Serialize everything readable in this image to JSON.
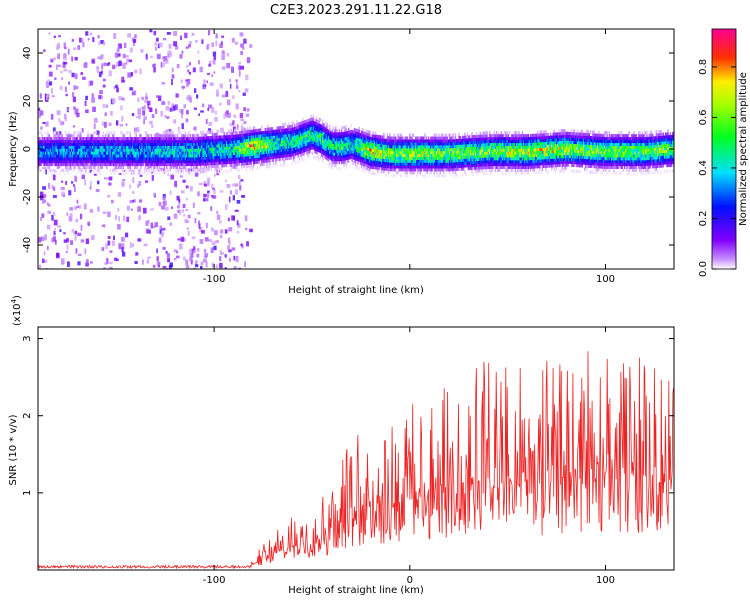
{
  "figure_title": "C2E3.2023.291.11.22.G18",
  "chart_data": [
    {
      "type": "heatmap",
      "title": "",
      "xlabel": "Height of straight line (km)",
      "ylabel": "Frequency (Hz)",
      "xlim": [
        -190,
        135
      ],
      "ylim": [
        -50,
        50
      ],
      "x_ticks": [
        -100,
        0,
        100
      ],
      "x_tick_labels": [
        "-100",
        "",
        "100"
      ],
      "y_ticks": [
        -40,
        -20,
        0,
        20,
        40
      ],
      "y_tick_labels": [
        "-40",
        "-20",
        "0",
        "20",
        "40"
      ],
      "grid": false,
      "colorbar": {
        "label": "Normalized spectral amplitude",
        "range": [
          0,
          0.95
        ],
        "ticks": [
          0.0,
          0.2,
          0.4,
          0.6,
          0.8
        ],
        "tick_labels": [
          "0.0",
          "0.2",
          "0.4",
          "0.6",
          "0.8"
        ],
        "colormap": "rainbow",
        "stops": [
          "#ffffff",
          "#8000ff",
          "#0000ff",
          "#00ffff",
          "#00ff00",
          "#ffff00",
          "#ff0000",
          "#ff00a0"
        ]
      },
      "signal_track": {
        "x": [
          -190,
          -170,
          -150,
          -130,
          -110,
          -90,
          -80,
          -70,
          -60,
          -50,
          -45,
          -40,
          -35,
          -30,
          -20,
          -10,
          0,
          20,
          40,
          60,
          80,
          100,
          120,
          135
        ],
        "center_frequency_hz": [
          -1,
          -1,
          -1,
          -1,
          -1,
          0,
          1,
          2,
          3,
          6,
          4,
          1,
          1,
          2,
          -1,
          -2,
          -2,
          -2,
          -1,
          -1,
          0,
          -1,
          -1,
          0
        ],
        "peak_amplitude": [
          0.4,
          0.4,
          0.45,
          0.45,
          0.5,
          0.55,
          0.9,
          0.6,
          0.55,
          0.6,
          0.6,
          0.55,
          0.6,
          0.5,
          0.85,
          0.7,
          0.75,
          0.7,
          0.7,
          0.8,
          0.75,
          0.7,
          0.7,
          0.7
        ]
      },
      "scatter_region": {
        "x_range": [
          -190,
          -82
        ],
        "f_range": [
          -50,
          50
        ]
      }
    },
    {
      "type": "line",
      "title": "",
      "xlabel": "Height of straight line (km)",
      "ylabel": "SNR (10 * v/v)",
      "scale_label": "(x10",
      "scale_exponent": "4",
      "scale_close": ")",
      "xlim": [
        -190,
        135
      ],
      "ylim": [
        0,
        3.15
      ],
      "x_ticks": [
        -100,
        0,
        100
      ],
      "x_tick_labels": [
        "-100",
        "0",
        "100"
      ],
      "y_ticks": [
        1,
        2,
        3
      ],
      "y_tick_labels": [
        "1",
        "2",
        "3"
      ],
      "grid": false,
      "color": "#ee2222",
      "series": [
        {
          "x": [
            -190,
            -100,
            -82,
            -75,
            -60,
            -50,
            -40,
            -30,
            -20,
            -10,
            0,
            20,
            40,
            60,
            80,
            100,
            120,
            135
          ],
          "baseline": [
            0.03,
            0.03,
            0.04,
            0.15,
            0.3,
            0.35,
            0.5,
            0.7,
            0.8,
            0.85,
            0.9,
            0.95,
            1.05,
            1.1,
            1.1,
            1.15,
            1.1,
            1.15
          ],
          "peak": [
            0.06,
            0.07,
            0.09,
            0.35,
            0.7,
            0.9,
            1.3,
            1.7,
            1.9,
            2.1,
            2.2,
            2.4,
            2.9,
            2.8,
            2.7,
            3.1,
            2.7,
            2.6
          ]
        }
      ]
    }
  ]
}
